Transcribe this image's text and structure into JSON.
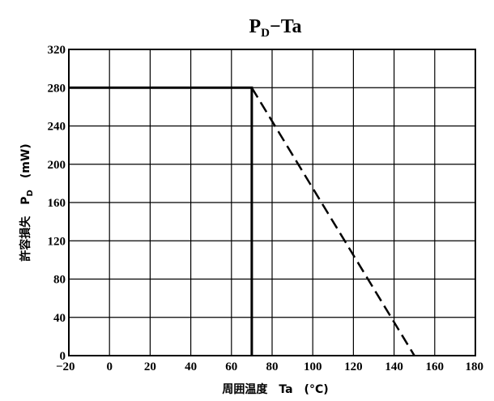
{
  "chart_data": {
    "type": "line",
    "title": {
      "main": "P",
      "sub": "D",
      "rest": "−Ta"
    },
    "xlabel": "周囲温度　Ta　(°C)",
    "ylabel": {
      "main": "許容損失　P",
      "sub": "D",
      "rest": "　(mW)"
    },
    "xlim": [
      -20,
      180
    ],
    "ylim": [
      0,
      320
    ],
    "xticks": [
      {
        "value": -20,
        "label": "−20"
      },
      {
        "value": 0,
        "label": "0"
      },
      {
        "value": 20,
        "label": "20"
      },
      {
        "value": 40,
        "label": "40"
      },
      {
        "value": 60,
        "label": "60"
      },
      {
        "value": 80,
        "label": "80"
      },
      {
        "value": 100,
        "label": "100"
      },
      {
        "value": 120,
        "label": "120"
      },
      {
        "value": 140,
        "label": "140"
      },
      {
        "value": 160,
        "label": "160"
      },
      {
        "value": 180,
        "label": "180"
      }
    ],
    "yticks": [
      {
        "value": 0,
        "label": "0"
      },
      {
        "value": 40,
        "label": "40"
      },
      {
        "value": 80,
        "label": "80"
      },
      {
        "value": 120,
        "label": "120"
      },
      {
        "value": 160,
        "label": "160"
      },
      {
        "value": 200,
        "label": "200"
      },
      {
        "value": 240,
        "label": "240"
      },
      {
        "value": 280,
        "label": "280"
      },
      {
        "value": 320,
        "label": "320"
      }
    ],
    "grid": true,
    "series": [
      {
        "style": "solid",
        "x": [
          -20,
          70,
          70
        ],
        "y": [
          280,
          280,
          0
        ]
      },
      {
        "style": "dashed",
        "x": [
          70,
          150
        ],
        "y": [
          280,
          0
        ]
      }
    ]
  }
}
